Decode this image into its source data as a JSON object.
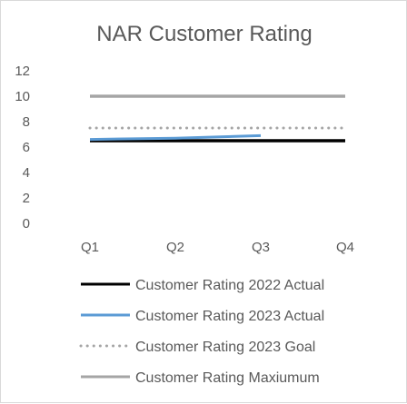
{
  "chart_data": {
    "type": "line",
    "title": "NAR Customer Rating",
    "xlabel": "",
    "ylabel": "",
    "categories": [
      "Q1",
      "Q2",
      "Q3",
      "Q4"
    ],
    "ylim": [
      0,
      12
    ],
    "yticks": [
      0,
      2,
      4,
      6,
      8,
      10,
      12
    ],
    "grid": false,
    "legend_position": "bottom",
    "series": [
      {
        "name": "Customer Rating 2022 Actual",
        "values": [
          6.5,
          6.5,
          6.5,
          6.5
        ],
        "color": "#000000",
        "style": "solid"
      },
      {
        "name": "Customer Rating 2023 Actual",
        "values": [
          6.6,
          6.7,
          6.9,
          null
        ],
        "color": "#5b9bd5",
        "style": "solid"
      },
      {
        "name": "Customer Rating 2023 Goal",
        "values": [
          7.5,
          7.5,
          7.5,
          7.5
        ],
        "color": "#a5a5a5",
        "style": "dotted"
      },
      {
        "name": "Customer Rating Maxiumum",
        "values": [
          10,
          10,
          10,
          10
        ],
        "color": "#a5a5a5",
        "style": "solid"
      }
    ]
  }
}
